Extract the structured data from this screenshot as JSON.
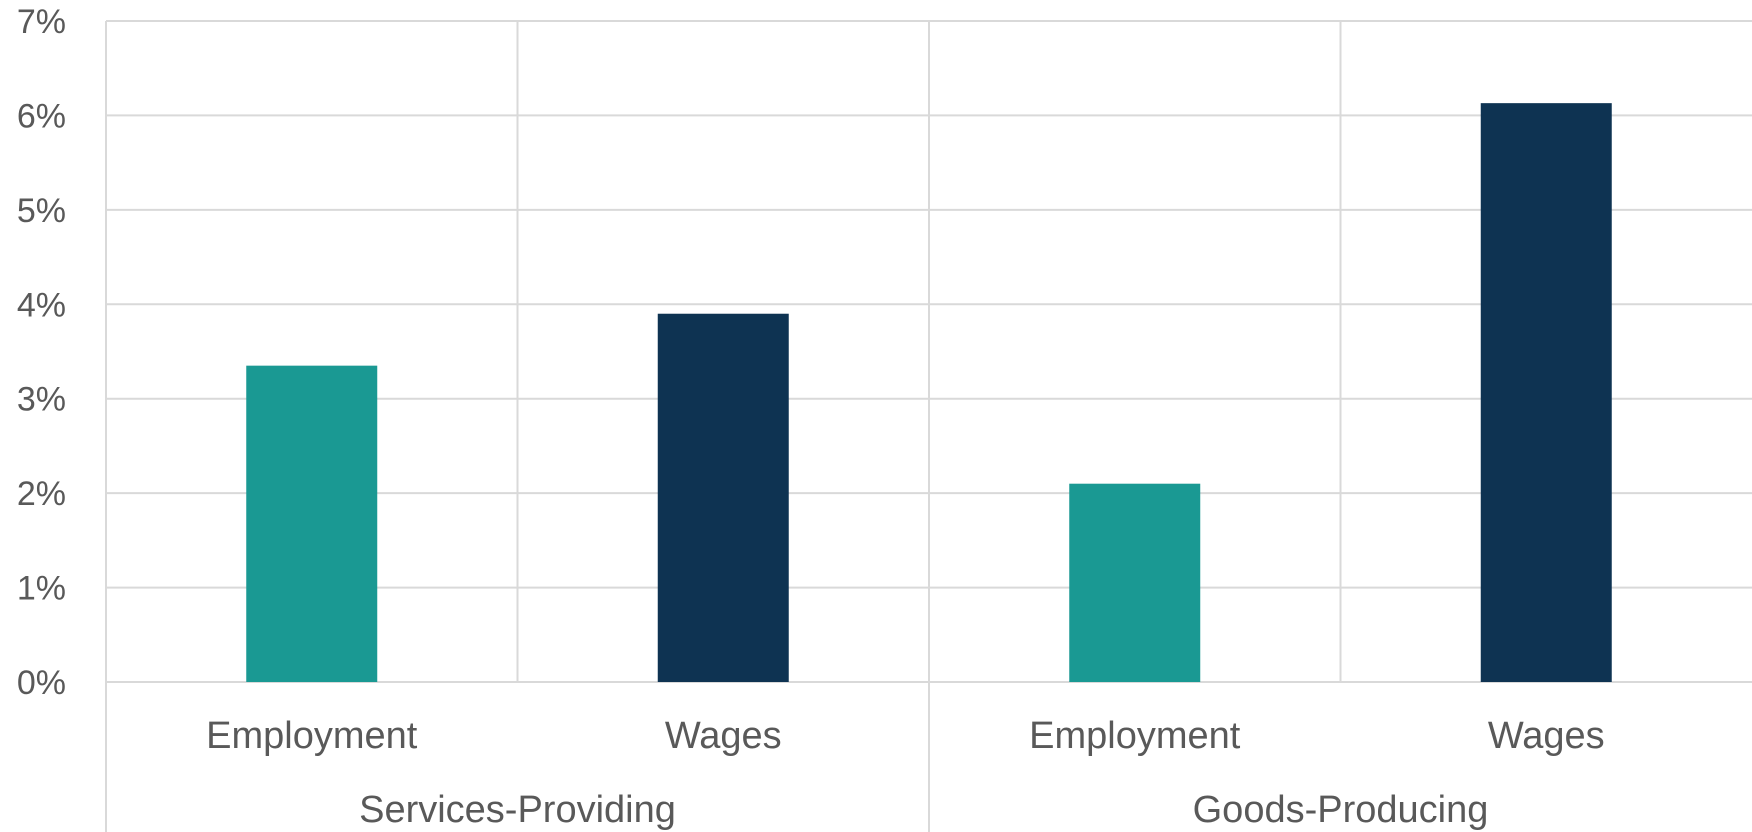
{
  "chart_data": {
    "type": "bar",
    "groups": [
      {
        "label": "Services-Providing",
        "categories": [
          "Employment",
          "Wages"
        ]
      },
      {
        "label": "Goods-Producing",
        "categories": [
          "Employment",
          "Wages"
        ]
      }
    ],
    "values": [
      3.35,
      3.9,
      2.1,
      6.13
    ],
    "y_ticks": [
      "0%",
      "1%",
      "2%",
      "3%",
      "4%",
      "5%",
      "6%",
      "7%"
    ],
    "ylim": [
      0,
      7
    ],
    "grid": true,
    "colors": {
      "Employment": "#1a9993",
      "Wages": "#0e3352"
    },
    "title": "",
    "xlabel": "",
    "ylabel": ""
  }
}
